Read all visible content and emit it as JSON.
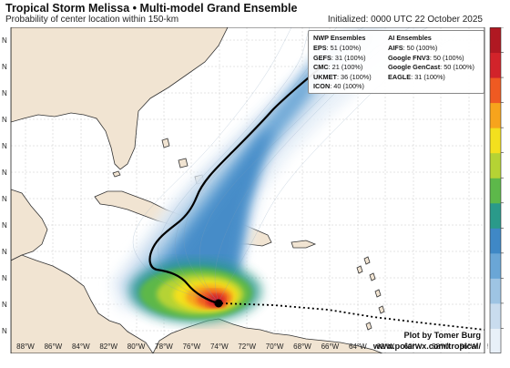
{
  "header": {
    "title": "Tropical Storm Melissa • Multi-model Grand Ensemble",
    "subtitle": "Probability of center location within 150-km",
    "initialized": "Initialized: 0000 UTC 22 October 2025"
  },
  "legend": {
    "nwp_title": "NWP Ensembles",
    "nwp": [
      {
        "model": "EPS",
        "count": ": 51 (100%)"
      },
      {
        "model": "GEFS",
        "count": ": 31 (100%)"
      },
      {
        "model": "CMC",
        "count": ": 21 (100%)"
      },
      {
        "model": "UKMET",
        "count": ": 36 (100%)"
      },
      {
        "model": "ICON",
        "count": ": 40 (100%)"
      }
    ],
    "ai_title": "AI Ensembles",
    "ai": [
      {
        "model": "AIFS",
        "count": ": 50 (100%)"
      },
      {
        "model": "Google FNV3",
        "count": ": 50 (100%)"
      },
      {
        "model": "Google GenCast",
        "count": ": 50 (100%)"
      },
      {
        "model": "EAGLE",
        "count": ": 31 (100%)"
      }
    ]
  },
  "credit": {
    "line1": "Plot by Tomer Burg",
    "line2": "www.polarwx.com/tropical/"
  },
  "x_ticks": [
    "88°W",
    "86°W",
    "84°W",
    "82°W",
    "80°W",
    "78°W",
    "76°W",
    "74°W",
    "72°W",
    "70°W",
    "68°W",
    "66°W",
    "64°W",
    "62°W",
    "60°W",
    "58°W",
    "56°W",
    "54°W"
  ],
  "y_ticks": [
    "N",
    "N",
    "N",
    "N",
    "N",
    "N",
    "N",
    "N",
    "N",
    "N",
    "N",
    "N"
  ],
  "colors": {
    "ocean": "#ffffff",
    "land": "#f1e4d2",
    "coast": "#333333",
    "track": "#000000",
    "colorbar": [
      "#e8f0f8",
      "#c9dcee",
      "#9ec4e3",
      "#6aa6d6",
      "#3f88c6",
      "#2a9a8a",
      "#5db84a",
      "#b5d334",
      "#f3e01e",
      "#f7a41c",
      "#ef5a22",
      "#d2232a",
      "#b01822"
    ]
  }
}
